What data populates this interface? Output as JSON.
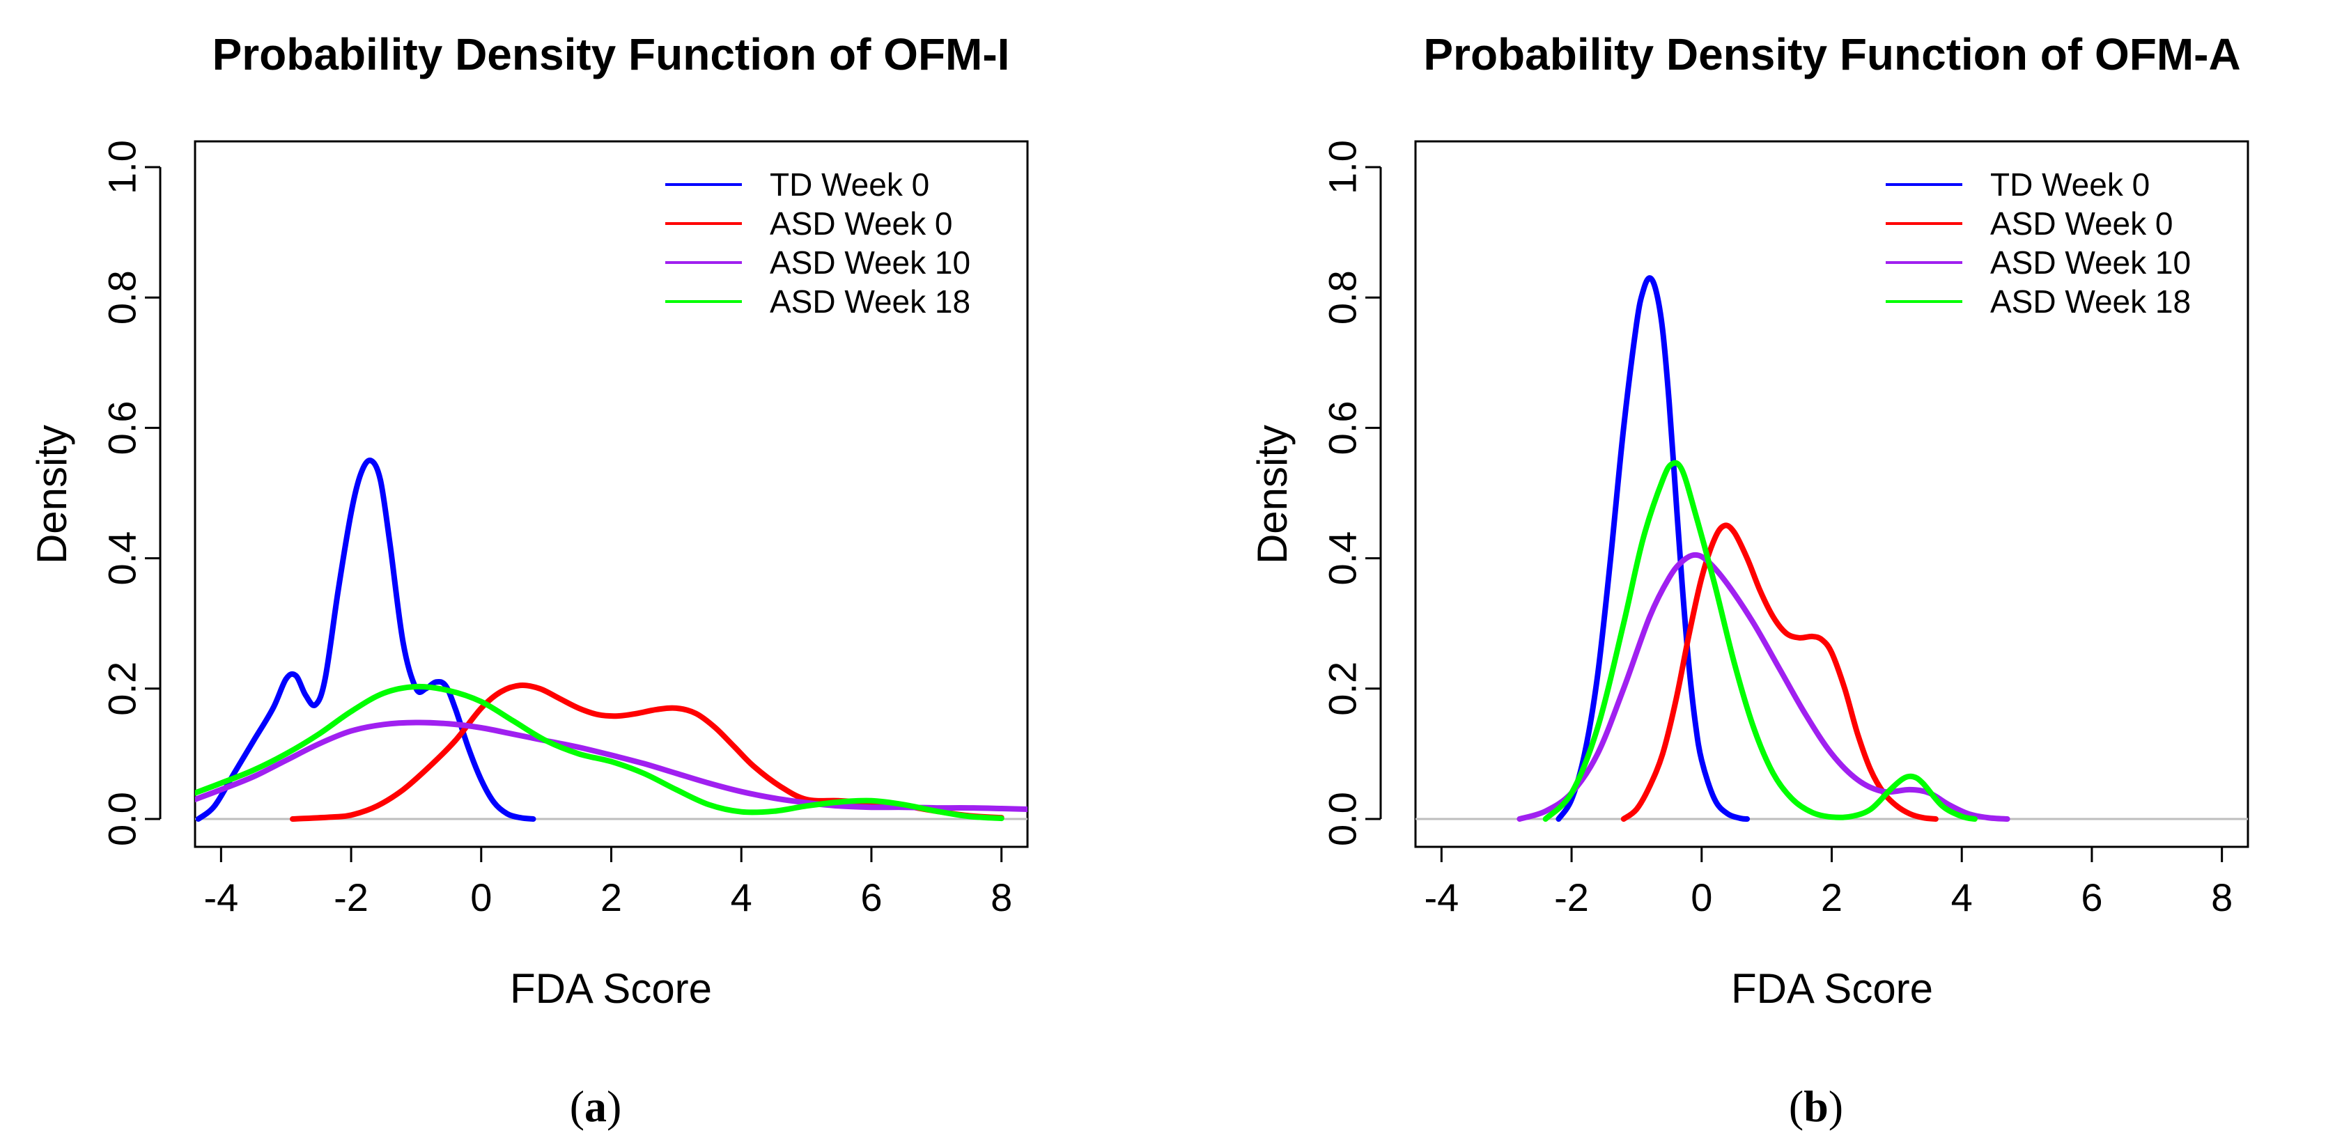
{
  "colors": {
    "td_week0": "#0000ff",
    "asd_week0": "#ff0000",
    "asd_week10": "#a020f0",
    "asd_week18": "#00ff00",
    "zero_line": "#bebebe"
  },
  "chart_data": [
    {
      "type": "line",
      "title": "Probability Density Function of OFM-I",
      "xlabel": "FDA Score",
      "ylabel": "Density",
      "caption_open": "(",
      "caption_letter": "a",
      "caption_close": ")",
      "xlim": [
        -4.4,
        8.4
      ],
      "ylim": [
        0,
        1.0
      ],
      "xticks": [
        -4,
        -2,
        0,
        2,
        4,
        6,
        8
      ],
      "yticks": [
        0.0,
        0.2,
        0.4,
        0.6,
        0.8,
        1.0
      ],
      "xtick_labels": [
        "-4",
        "-2",
        "0",
        "2",
        "4",
        "6",
        "8"
      ],
      "ytick_labels": [
        "0.0",
        "0.2",
        "0.4",
        "0.6",
        "0.8",
        "1.0"
      ],
      "legend_position": "top-right",
      "series": [
        {
          "name": "TD Week 0",
          "color_key": "td_week0",
          "x": [
            -4.35,
            -4.1,
            -3.8,
            -3.5,
            -3.2,
            -3.0,
            -2.85,
            -2.7,
            -2.55,
            -2.4,
            -2.2,
            -2.0,
            -1.85,
            -1.7,
            -1.55,
            -1.4,
            -1.2,
            -1.0,
            -0.85,
            -0.7,
            -0.55,
            -0.4,
            -0.2,
            0.0,
            0.2,
            0.4,
            0.6,
            0.8
          ],
          "y": [
            0.0,
            0.02,
            0.07,
            0.12,
            0.17,
            0.215,
            0.22,
            0.19,
            0.175,
            0.215,
            0.35,
            0.47,
            0.53,
            0.55,
            0.52,
            0.42,
            0.27,
            0.2,
            0.2,
            0.21,
            0.205,
            0.17,
            0.11,
            0.06,
            0.025,
            0.008,
            0.002,
            0.0
          ]
        },
        {
          "name": "ASD Week 0",
          "color_key": "asd_week0",
          "x": [
            -2.9,
            -2.3,
            -2.0,
            -1.6,
            -1.2,
            -0.8,
            -0.4,
            0.0,
            0.3,
            0.6,
            0.9,
            1.2,
            1.5,
            1.8,
            2.1,
            2.4,
            2.7,
            3.0,
            3.3,
            3.6,
            3.9,
            4.2,
            4.6,
            5.0,
            5.5,
            6.0,
            6.5,
            7.0,
            7.5,
            8.0
          ],
          "y": [
            0.0,
            0.003,
            0.006,
            0.02,
            0.045,
            0.08,
            0.12,
            0.17,
            0.195,
            0.205,
            0.2,
            0.185,
            0.17,
            0.16,
            0.158,
            0.162,
            0.168,
            0.17,
            0.162,
            0.14,
            0.11,
            0.08,
            0.05,
            0.03,
            0.028,
            0.025,
            0.02,
            0.012,
            0.005,
            0.002
          ]
        },
        {
          "name": "ASD Week 10",
          "color_key": "asd_week10",
          "x": [
            -4.4,
            -4.0,
            -3.5,
            -3.0,
            -2.5,
            -2.0,
            -1.5,
            -1.0,
            -0.5,
            0.0,
            0.5,
            1.0,
            1.5,
            2.0,
            2.5,
            3.0,
            3.5,
            4.0,
            4.5,
            5.0,
            5.5,
            6.0,
            6.5,
            7.0,
            7.5,
            8.0,
            8.4
          ],
          "y": [
            0.03,
            0.045,
            0.065,
            0.09,
            0.115,
            0.135,
            0.145,
            0.148,
            0.146,
            0.14,
            0.13,
            0.12,
            0.11,
            0.098,
            0.085,
            0.07,
            0.055,
            0.042,
            0.032,
            0.025,
            0.02,
            0.018,
            0.018,
            0.017,
            0.017,
            0.016,
            0.015
          ]
        },
        {
          "name": "ASD Week 18",
          "color_key": "asd_week18",
          "x": [
            -4.4,
            -4.0,
            -3.5,
            -3.0,
            -2.5,
            -2.0,
            -1.5,
            -1.0,
            -0.5,
            0.0,
            0.5,
            1.0,
            1.5,
            2.0,
            2.5,
            3.0,
            3.5,
            4.0,
            4.5,
            5.0,
            5.5,
            6.0,
            6.5,
            7.0,
            7.5,
            8.0
          ],
          "y": [
            0.04,
            0.055,
            0.075,
            0.1,
            0.13,
            0.165,
            0.193,
            0.203,
            0.197,
            0.18,
            0.15,
            0.12,
            0.1,
            0.088,
            0.07,
            0.045,
            0.022,
            0.011,
            0.012,
            0.02,
            0.026,
            0.028,
            0.022,
            0.012,
            0.004,
            0.001
          ]
        }
      ]
    },
    {
      "type": "line",
      "title": "Probability Density Function of OFM-A",
      "xlabel": "FDA Score",
      "ylabel": "Density",
      "caption_open": "(",
      "caption_letter": "b",
      "caption_close": ")",
      "xlim": [
        -4.4,
        8.4
      ],
      "ylim": [
        0,
        1.0
      ],
      "xticks": [
        -4,
        -2,
        0,
        2,
        4,
        6,
        8
      ],
      "yticks": [
        0.0,
        0.2,
        0.4,
        0.6,
        0.8,
        1.0
      ],
      "xtick_labels": [
        "-4",
        "-2",
        "0",
        "2",
        "4",
        "6",
        "8"
      ],
      "ytick_labels": [
        "0.0",
        "0.2",
        "0.4",
        "0.6",
        "0.8",
        "1.0"
      ],
      "legend_position": "top-right",
      "series": [
        {
          "name": "TD Week 0",
          "color_key": "td_week0",
          "x": [
            -2.2,
            -2.0,
            -1.8,
            -1.6,
            -1.4,
            -1.2,
            -1.0,
            -0.9,
            -0.8,
            -0.7,
            -0.6,
            -0.5,
            -0.4,
            -0.3,
            -0.2,
            -0.1,
            0.0,
            0.2,
            0.4,
            0.6,
            0.7
          ],
          "y": [
            0.0,
            0.03,
            0.1,
            0.22,
            0.4,
            0.6,
            0.76,
            0.81,
            0.83,
            0.81,
            0.75,
            0.64,
            0.5,
            0.36,
            0.24,
            0.15,
            0.09,
            0.03,
            0.008,
            0.001,
            0.0
          ]
        },
        {
          "name": "ASD Week 0",
          "color_key": "asd_week0",
          "x": [
            -1.2,
            -1.0,
            -0.8,
            -0.6,
            -0.4,
            -0.2,
            0.0,
            0.2,
            0.35,
            0.5,
            0.7,
            0.9,
            1.1,
            1.3,
            1.5,
            1.7,
            1.85,
            2.0,
            2.2,
            2.4,
            2.6,
            2.8,
            3.0,
            3.2,
            3.4,
            3.6
          ],
          "y": [
            0.0,
            0.015,
            0.05,
            0.1,
            0.18,
            0.28,
            0.37,
            0.43,
            0.45,
            0.44,
            0.4,
            0.35,
            0.31,
            0.285,
            0.278,
            0.28,
            0.275,
            0.255,
            0.2,
            0.13,
            0.075,
            0.04,
            0.02,
            0.008,
            0.002,
            0.0
          ]
        },
        {
          "name": "ASD Week 10",
          "color_key": "asd_week10",
          "x": [
            -2.8,
            -2.4,
            -2.0,
            -1.6,
            -1.2,
            -0.8,
            -0.5,
            -0.3,
            -0.1,
            0.1,
            0.4,
            0.8,
            1.2,
            1.6,
            2.0,
            2.4,
            2.8,
            3.2,
            3.5,
            3.8,
            4.1,
            4.4,
            4.7
          ],
          "y": [
            0.0,
            0.012,
            0.04,
            0.1,
            0.2,
            0.31,
            0.37,
            0.395,
            0.405,
            0.395,
            0.36,
            0.3,
            0.23,
            0.16,
            0.1,
            0.06,
            0.042,
            0.045,
            0.04,
            0.022,
            0.008,
            0.002,
            0.0
          ]
        },
        {
          "name": "ASD Week 18",
          "color_key": "asd_week18",
          "x": [
            -2.4,
            -2.0,
            -1.6,
            -1.2,
            -0.9,
            -0.6,
            -0.45,
            -0.3,
            -0.1,
            0.2,
            0.5,
            0.8,
            1.1,
            1.4,
            1.7,
            2.0,
            2.3,
            2.6,
            2.9,
            3.1,
            3.25,
            3.4,
            3.7,
            4.0,
            4.2
          ],
          "y": [
            0.0,
            0.04,
            0.14,
            0.3,
            0.43,
            0.52,
            0.545,
            0.535,
            0.47,
            0.36,
            0.24,
            0.14,
            0.07,
            0.03,
            0.01,
            0.003,
            0.004,
            0.015,
            0.045,
            0.062,
            0.065,
            0.055,
            0.02,
            0.004,
            0.0
          ]
        }
      ]
    }
  ]
}
